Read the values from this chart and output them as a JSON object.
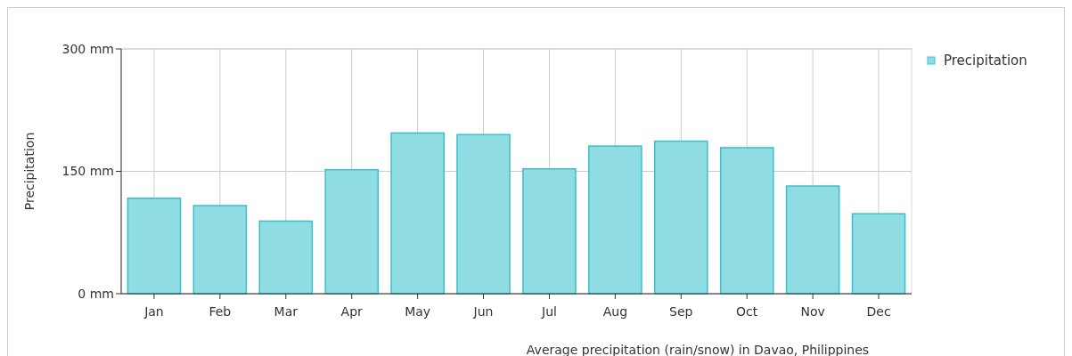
{
  "chart_data": {
    "type": "bar",
    "ylabel": "Precipitation",
    "categories": [
      "Jan",
      "Feb",
      "Mar",
      "Apr",
      "May",
      "Jun",
      "Jul",
      "Aug",
      "Sep",
      "Oct",
      "Nov",
      "Dec"
    ],
    "series": [
      {
        "name": "Precipitation",
        "color": "#8fdde2",
        "values": [
          117,
          108,
          89,
          152,
          197,
          195,
          153,
          181,
          187,
          179,
          132,
          98
        ]
      }
    ],
    "ylim": [
      0,
      300
    ],
    "yticks": [
      {
        "value": 0,
        "label": "0 mm"
      },
      {
        "value": 150,
        "label": "150 mm"
      },
      {
        "value": 300,
        "label": "300 mm"
      }
    ],
    "grid": true,
    "legend": "top right",
    "annotations": [
      "Average precipitation (rain/snow) in Davao, Philippines"
    ]
  }
}
